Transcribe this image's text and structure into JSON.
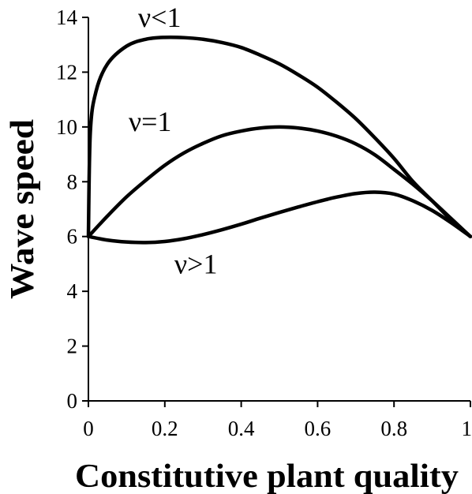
{
  "chart_data": {
    "type": "line",
    "title": "",
    "xlabel": "Constitutive plant quality",
    "ylabel": "Wave speed",
    "xlim": [
      0,
      1
    ],
    "ylim": [
      0,
      14
    ],
    "x_ticks": [
      0,
      0.2,
      0.4,
      0.6,
      0.8,
      1
    ],
    "x_tick_labels": [
      "0",
      "0.2",
      "0.4",
      "0.6",
      "0.8",
      "1"
    ],
    "y_ticks": [
      0,
      2,
      4,
      6,
      8,
      10,
      12,
      14
    ],
    "y_tick_labels": [
      "0",
      "2",
      "4",
      "6",
      "8",
      "10",
      "12",
      "14"
    ],
    "grid": false,
    "legend": "none",
    "series": [
      {
        "name": "ν<1",
        "x": [
          0,
          0.005,
          0.02,
          0.05,
          0.1,
          0.15,
          0.2,
          0.25,
          0.3,
          0.35,
          0.4,
          0.45,
          0.5,
          0.55,
          0.6,
          0.65,
          0.7,
          0.75,
          0.8,
          0.85,
          0.9,
          0.95,
          1.0
        ],
        "values": [
          6.0,
          9.8,
          11.3,
          12.3,
          12.95,
          13.2,
          13.27,
          13.26,
          13.2,
          13.08,
          12.9,
          12.62,
          12.3,
          11.9,
          11.45,
          10.9,
          10.3,
          9.6,
          8.85,
          8.0,
          7.3,
          6.6,
          6.0
        ]
      },
      {
        "name": "ν=1",
        "x": [
          0,
          0.05,
          0.1,
          0.15,
          0.2,
          0.25,
          0.3,
          0.35,
          0.4,
          0.45,
          0.5,
          0.55,
          0.6,
          0.65,
          0.7,
          0.75,
          0.8,
          0.85,
          0.9,
          0.95,
          1.0
        ],
        "values": [
          6.0,
          6.75,
          7.45,
          8.05,
          8.6,
          9.05,
          9.4,
          9.68,
          9.85,
          9.96,
          10.0,
          9.96,
          9.85,
          9.66,
          9.38,
          8.98,
          8.45,
          7.9,
          7.3,
          6.65,
          6.0
        ]
      },
      {
        "name": "ν>1",
        "x": [
          0,
          0.05,
          0.1,
          0.15,
          0.2,
          0.25,
          0.3,
          0.35,
          0.4,
          0.45,
          0.5,
          0.55,
          0.6,
          0.65,
          0.7,
          0.75,
          0.8,
          0.85,
          0.9,
          0.95,
          1.0
        ],
        "values": [
          6.0,
          5.87,
          5.8,
          5.78,
          5.82,
          5.92,
          6.07,
          6.25,
          6.45,
          6.67,
          6.88,
          7.08,
          7.27,
          7.44,
          7.57,
          7.62,
          7.55,
          7.3,
          6.95,
          6.5,
          6.0
        ]
      }
    ],
    "annotations": [
      {
        "text": "ν<1",
        "x": 0.13,
        "y": 13.65
      },
      {
        "text": "ν=1",
        "x": 0.105,
        "y": 9.85
      },
      {
        "text": "ν>1",
        "x": 0.225,
        "y": 4.65
      }
    ]
  }
}
